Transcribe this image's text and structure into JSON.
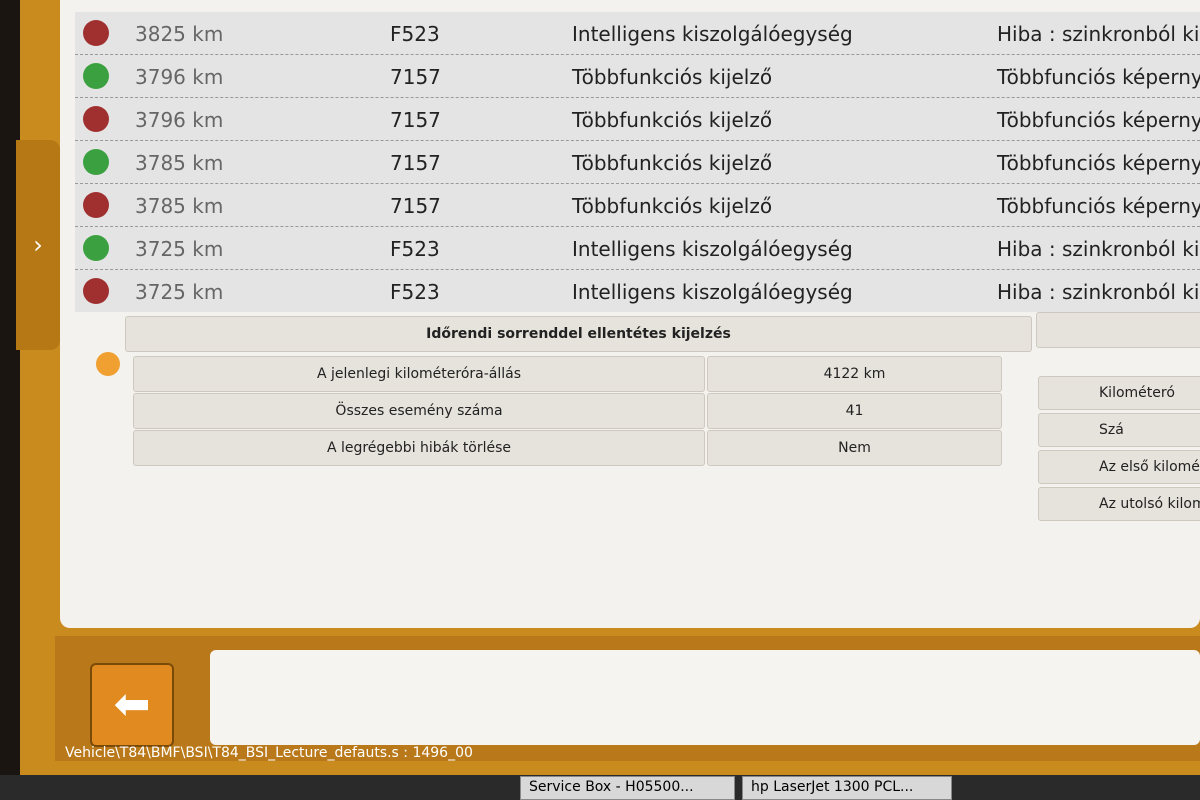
{
  "event_list": {
    "rows": [
      {
        "status": "red",
        "km": "3825 km",
        "code": "F523",
        "module": "Intelligens kiszolgálóegység",
        "description": "Hiba : szinkronból kiese"
      },
      {
        "status": "green",
        "km": "3796 km",
        "code": "7157",
        "module": "Többfunkciós kijelző",
        "description": "Többfunciós képernyő c"
      },
      {
        "status": "red",
        "km": "3796 km",
        "code": "7157",
        "module": "Többfunkciós kijelző",
        "description": "Többfunciós képernyő c"
      },
      {
        "status": "green",
        "km": "3785 km",
        "code": "7157",
        "module": "Többfunkciós kijelző",
        "description": "Többfunciós képernyő c"
      },
      {
        "status": "red",
        "km": "3785 km",
        "code": "7157",
        "module": "Többfunkciós kijelző",
        "description": "Többfunciós képernyő c"
      },
      {
        "status": "green",
        "km": "3725 km",
        "code": "F523",
        "module": "Intelligens kiszolgálóegység",
        "description": "Hiba : szinkronból kieset"
      },
      {
        "status": "red",
        "km": "3725 km",
        "code": "F523",
        "module": "Intelligens kiszolgálóegység",
        "description": "Hiba : szinkronból kieset"
      }
    ]
  },
  "summary_panel": {
    "title": "Időrendi sorrenddel ellentétes kijelzés",
    "rows": [
      {
        "label": "A jelenlegi kilométeróra-állás",
        "value": "4122 km"
      },
      {
        "label": "Összes esemény száma",
        "value": "41"
      },
      {
        "label": "A legrégebbi hibák törlése",
        "value": "Nem"
      }
    ]
  },
  "side_panel": {
    "items": [
      "Kilométeró",
      "Szá",
      "Az első kilomét",
      "Az utolsó kilomé"
    ]
  },
  "footer": {
    "path": "Vehicle\\T84\\BMF\\BSI\\T84_BSI_Lecture_defauts.s : 1496_00"
  },
  "taskbar": {
    "items": [
      "Service Box - H05500...",
      "hp LaserJet 1300 PCL..."
    ]
  }
}
